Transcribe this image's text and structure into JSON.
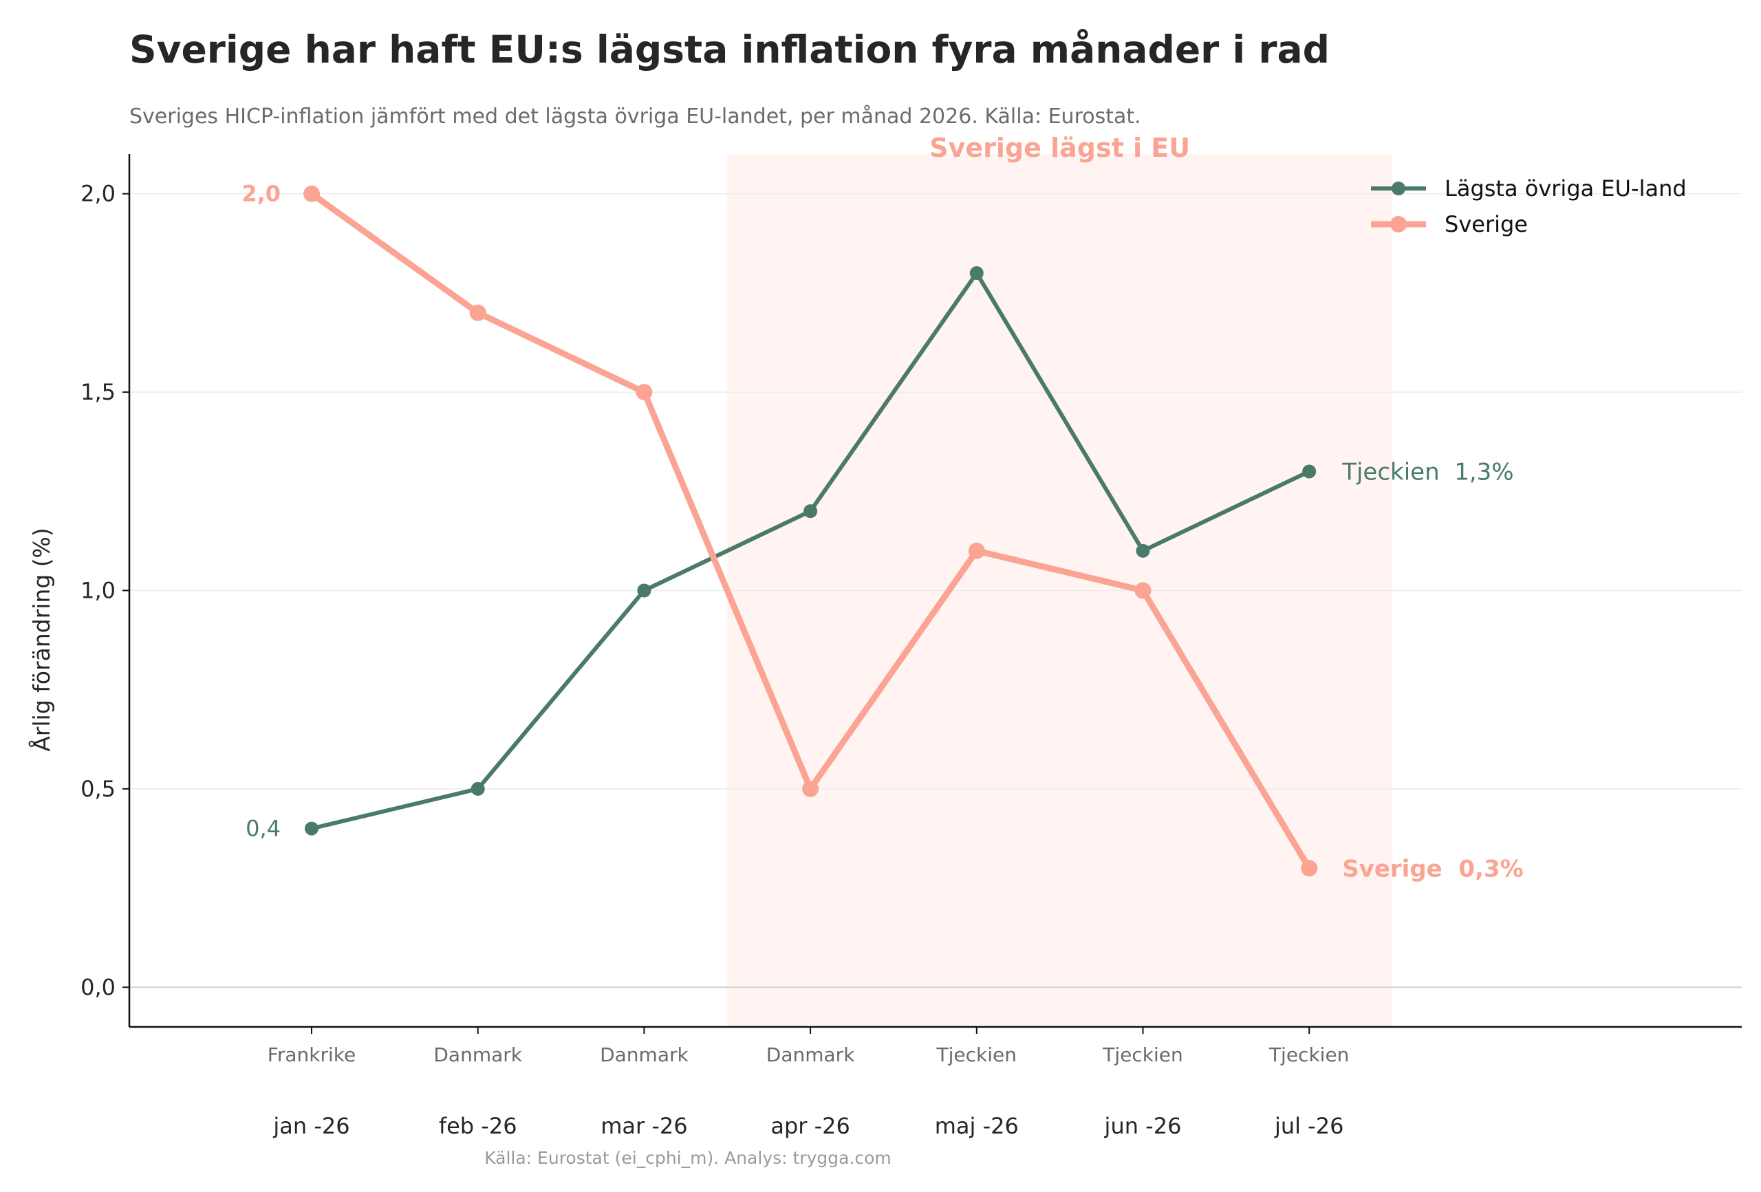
{
  "title": "Sverige har haft EU:s lägsta inflation fyra månader i rad",
  "subtitle": "Sveriges HICP-inflation jämfört med det lägsta övriga EU-landet, per månad 2026. Källa: Eurostat.",
  "source_note": "Källa: Eurostat (ei_cphi_m). Analys: trygga.com",
  "colors": {
    "green": "#4a7a6a",
    "salmon": "#fba493",
    "shade": "#fff4f2",
    "axis": "#111111",
    "grid": "#ececec",
    "zero_line": "#cfcfcf"
  },
  "chart_data": {
    "type": "line",
    "title": "Sverige har haft EU:s lägsta inflation fyra månader i rad",
    "subtitle": "Sveriges HICP-inflation jämfört med det lägsta övriga EU-landet, per månad 2026. Källa: Eurostat.",
    "xlabel": "",
    "ylabel": "Årlig förändring (%)",
    "categories": [
      "jan -26",
      "feb -26",
      "mar -26",
      "apr -26",
      "maj -26",
      "jun -26",
      "jul -26"
    ],
    "lowest_country": [
      "Frankrike",
      "Danmark",
      "Danmark",
      "Danmark",
      "Tjeckien",
      "Tjeckien",
      "Tjeckien"
    ],
    "ylim": [
      -0.1,
      2.1
    ],
    "yticks": [
      0.0,
      0.5,
      1.0,
      1.5,
      2.0
    ],
    "ytick_labels": [
      "0,0",
      "0,5",
      "1,0",
      "1,5",
      "2,0"
    ],
    "grid": true,
    "legend_position": "top-right",
    "series": [
      {
        "name": "Lägsta övriga EU-land",
        "values": [
          0.4,
          0.5,
          1.0,
          1.2,
          1.8,
          1.1,
          1.3
        ],
        "color": "#4a7a6a"
      },
      {
        "name": "Sverige",
        "values": [
          2.0,
          1.7,
          1.5,
          0.5,
          1.1,
          1.0,
          0.3
        ],
        "color": "#fba493"
      }
    ],
    "highlight_region": {
      "from_category": "apr -26",
      "to_category": "jul -26",
      "label": "Sverige lägst i EU"
    },
    "annotations": {
      "start_green": "0,4",
      "start_salmon": "2,0",
      "end_green_name": "Tjeckien",
      "end_green_value": "1,3%",
      "end_salmon_name": "Sverige",
      "end_salmon_value": "0,3%"
    }
  }
}
